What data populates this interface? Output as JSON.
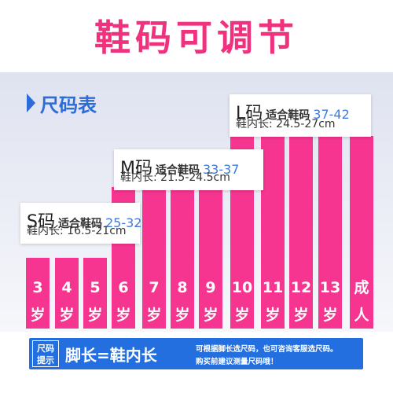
{
  "title": "鞋码可调节",
  "section_label": "尺码表",
  "bars": [
    {
      "top": "3",
      "bottom": "岁"
    },
    {
      "top": "4",
      "bottom": "岁"
    },
    {
      "top": "5",
      "bottom": "岁"
    },
    {
      "top": "6",
      "bottom": "岁"
    },
    {
      "top": "7",
      "bottom": "岁"
    },
    {
      "top": "8",
      "bottom": "岁"
    },
    {
      "top": "9",
      "bottom": "岁"
    },
    {
      "top": "10",
      "bottom": "岁"
    },
    {
      "top": "11",
      "bottom": "岁"
    },
    {
      "top": "12",
      "bottom": "岁"
    },
    {
      "top": "13",
      "bottom": "岁"
    },
    {
      "top": "成",
      "bottom": "人"
    }
  ],
  "sizes": {
    "s": {
      "size": "S码",
      "fit_label": "适合鞋码",
      "range": "25-32",
      "length": "鞋内长: 16.5-21cm"
    },
    "m": {
      "size": "M码",
      "fit_label": "适合鞋码",
      "range": "33-37",
      "length": "鞋内长: 21.5-24.5cm"
    },
    "l": {
      "size": "L码",
      "fit_label": "适合鞋码",
      "range": "37-42",
      "length": "鞋内长: 24.5-27cm"
    }
  },
  "banner": {
    "badge_line1": "尺码",
    "badge_line2": "提示",
    "formula": "脚长=鞋内长",
    "tip_line1": "可根据脚长选尺码，也可咨询客服选尺码。",
    "tip_line2": "购买前建议测量尺码哦！"
  },
  "colors": {
    "accent_pink": "#f5358f",
    "title_pink": "#f0327e",
    "accent_blue": "#2b6cd8"
  }
}
